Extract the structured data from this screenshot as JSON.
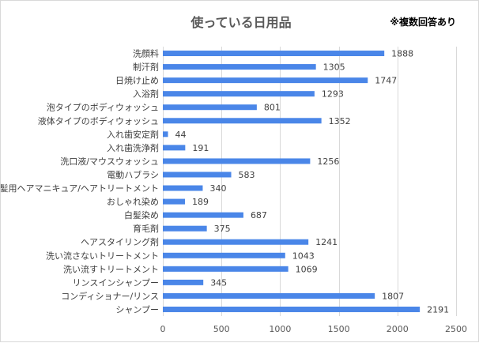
{
  "chart_data": {
    "type": "bar",
    "orientation": "horizontal",
    "title": "使っている日用品",
    "note": "※複数回答あり",
    "categories": [
      "洗顔料",
      "制汗剤",
      "日焼け止め",
      "入浴剤",
      "泡タイプのボディウォッシュ",
      "液体タイプのボディウォッシュ",
      "入れ歯安定剤",
      "入れ歯洗浄剤",
      "洗口液/マウスウォッシュ",
      "電動ハブラシ",
      "白髪用ヘアマニキュア/ヘアトリートメント",
      "おしゃれ染め",
      "白髪染め",
      "育毛剤",
      "ヘアスタイリング剤",
      "洗い流さないトリートメント",
      "洗い流すトリートメント",
      "リンスインシャンプー",
      "コンディショナー/リンス",
      "シャンプー"
    ],
    "values": [
      1888,
      1305,
      1747,
      1293,
      801,
      1352,
      44,
      191,
      1256,
      583,
      340,
      189,
      687,
      375,
      1241,
      1043,
      1069,
      345,
      1807,
      2191
    ],
    "xlim": [
      0,
      2500
    ],
    "xticks": [
      0,
      500,
      1000,
      1500,
      2000,
      2500
    ],
    "grid": true,
    "legend": "none",
    "bar_color": "#4a86e8"
  }
}
